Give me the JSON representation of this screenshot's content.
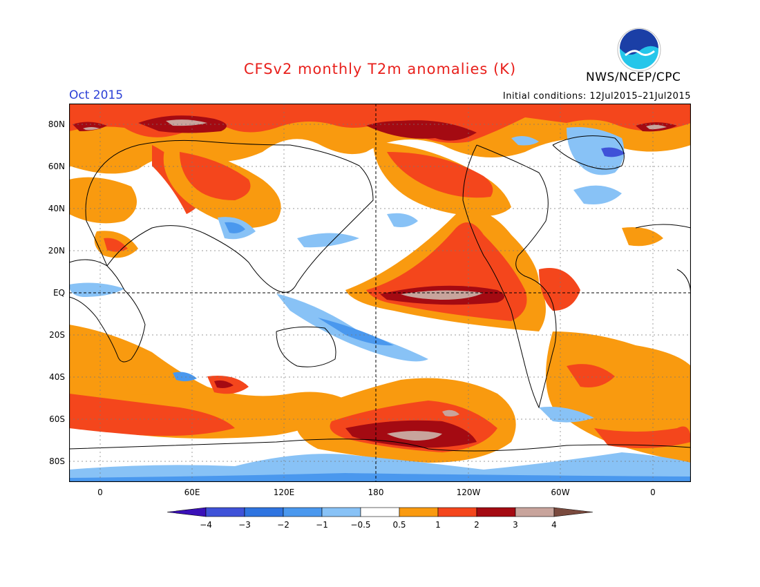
{
  "header": {
    "title": "CFSv2 monthly T2m anomalies (K)",
    "agency": "NWS/NCEP/CPC",
    "logo_text": "NOAA",
    "month": "Oct 2015",
    "initial_conditions": "Initial conditions: 12Jul2015–21Jul2015"
  },
  "axes": {
    "lat_labels": [
      "80N",
      "60N",
      "40N",
      "20N",
      "EQ",
      "20S",
      "40S",
      "60S",
      "80S"
    ],
    "lon_labels": [
      "0",
      "60E",
      "120E",
      "180",
      "120W",
      "60W",
      "0"
    ]
  },
  "colorbar": {
    "labels": [
      "−4",
      "−3",
      "−2",
      "−1",
      "−0.5",
      "0.5",
      "1",
      "2",
      "3",
      "4"
    ],
    "colors": [
      "#3a10b8",
      "#3f52d8",
      "#2f74e0",
      "#4a98ee",
      "#88c2f6",
      "#ffffff",
      "#f99a0f",
      "#f4461c",
      "#a40a12",
      "#c8a49c",
      "#7a4a3e"
    ]
  },
  "colors": {
    "title": "#e8201c",
    "month": "#2b3fd6"
  }
}
